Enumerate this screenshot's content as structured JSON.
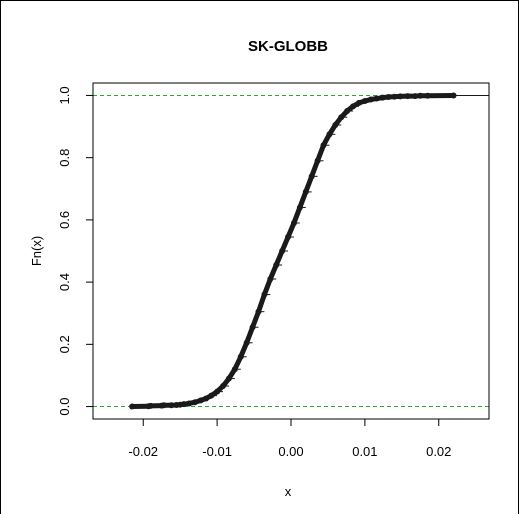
{
  "chart_data": {
    "type": "scatter",
    "title": "SK-GLOBB",
    "xlabel": "x",
    "ylabel": "Fn(x)",
    "xlim": [
      -0.0268,
      0.0268
    ],
    "ylim": [
      -0.04,
      1.04
    ],
    "x_ticks": [
      -0.02,
      -0.01,
      0.0,
      0.01,
      0.02
    ],
    "x_tick_labels": [
      "-0.02",
      "-0.01",
      "0.00",
      "0.01",
      "0.02"
    ],
    "y_ticks": [
      0.0,
      0.2,
      0.4,
      0.6,
      0.8,
      1.0
    ],
    "y_tick_labels": [
      "0.0",
      "0.2",
      "0.4",
      "0.6",
      "0.8",
      "1.0"
    ],
    "reference_lines": [
      {
        "y": 0.0,
        "color": "#2aa82a",
        "style": "dashed"
      },
      {
        "y": 1.0,
        "color": "#2aa82a",
        "style": "dashed"
      }
    ],
    "point_color": "#1a1a1a",
    "series": [
      {
        "points": [
          [
            -0.0215,
            0.0
          ],
          [
            -0.0193,
            0.001
          ],
          [
            -0.019,
            0.002
          ],
          [
            -0.0175,
            0.003
          ],
          [
            -0.0172,
            0.004
          ],
          [
            -0.0162,
            0.004
          ],
          [
            -0.0155,
            0.005
          ],
          [
            -0.015,
            0.006
          ],
          [
            -0.0145,
            0.008
          ],
          [
            -0.0138,
            0.01
          ],
          [
            -0.013,
            0.014
          ],
          [
            -0.0122,
            0.02
          ],
          [
            -0.0115,
            0.026
          ],
          [
            -0.0108,
            0.035
          ],
          [
            -0.01,
            0.048
          ],
          [
            -0.0092,
            0.066
          ],
          [
            -0.0084,
            0.09
          ],
          [
            -0.0076,
            0.12
          ],
          [
            -0.0068,
            0.16
          ],
          [
            -0.006,
            0.205
          ],
          [
            -0.0052,
            0.255
          ],
          [
            -0.0044,
            0.305
          ],
          [
            -0.0036,
            0.36
          ],
          [
            -0.0028,
            0.41
          ],
          [
            -0.002,
            0.455
          ],
          [
            -0.0012,
            0.5
          ],
          [
            -0.0004,
            0.545
          ],
          [
            0.0004,
            0.59
          ],
          [
            0.0012,
            0.64
          ],
          [
            0.002,
            0.69
          ],
          [
            0.0028,
            0.74
          ],
          [
            0.0036,
            0.79
          ],
          [
            0.0044,
            0.84
          ],
          [
            0.0052,
            0.875
          ],
          [
            0.006,
            0.905
          ],
          [
            0.0068,
            0.93
          ],
          [
            0.0076,
            0.95
          ],
          [
            0.0084,
            0.965
          ],
          [
            0.0092,
            0.976
          ],
          [
            0.01,
            0.982
          ],
          [
            0.0108,
            0.987
          ],
          [
            0.0116,
            0.99
          ],
          [
            0.0124,
            0.993
          ],
          [
            0.0132,
            0.995
          ],
          [
            0.014,
            0.996
          ],
          [
            0.0148,
            0.997
          ],
          [
            0.0158,
            0.998
          ],
          [
            0.0168,
            0.998
          ],
          [
            0.0175,
            0.999
          ],
          [
            0.0185,
            0.999
          ],
          [
            0.022,
            1.0
          ]
        ]
      }
    ]
  }
}
